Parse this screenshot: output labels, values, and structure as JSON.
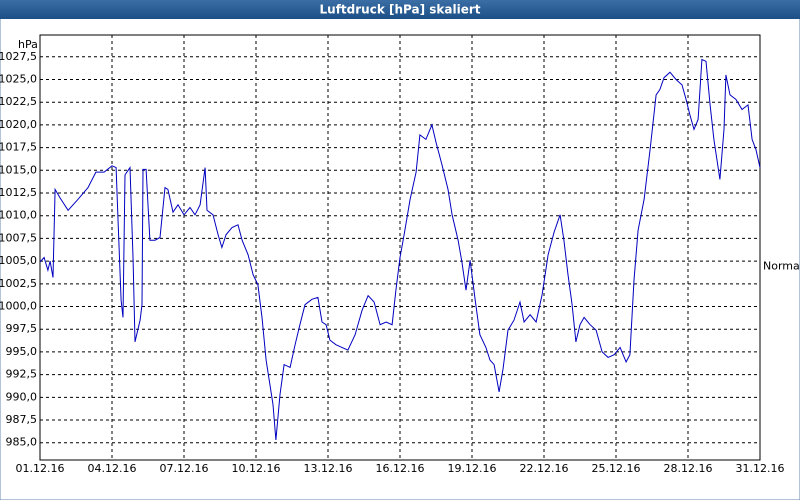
{
  "chart_data": {
    "type": "line",
    "title": "Luftdruck [hPa] skaliert",
    "y_label": "hPa",
    "annotation": {
      "text": "Normal",
      "value": 1004.4
    },
    "color": "#0000c0",
    "grid": true,
    "xlim": [
      1,
      31
    ],
    "ylim": [
      983.1,
      1029.9
    ],
    "xticks": [
      {
        "value": 1,
        "label": "01.12.16"
      },
      {
        "value": 4,
        "label": "04.12.16"
      },
      {
        "value": 7,
        "label": "07.12.16"
      },
      {
        "value": 10,
        "label": "10.12.16"
      },
      {
        "value": 13,
        "label": "13.12.16"
      },
      {
        "value": 16,
        "label": "16.12.16"
      },
      {
        "value": 19,
        "label": "19.12.16"
      },
      {
        "value": 22,
        "label": "22.12.16"
      },
      {
        "value": 25,
        "label": "25.12.16"
      },
      {
        "value": 28,
        "label": "28.12.16"
      },
      {
        "value": 31,
        "label": "31.12.16"
      }
    ],
    "yticks": [
      {
        "value": 985,
        "label": "985,0"
      },
      {
        "value": 987.5,
        "label": "987,5"
      },
      {
        "value": 990,
        "label": "990,0"
      },
      {
        "value": 992.5,
        "label": "992,5"
      },
      {
        "value": 995,
        "label": "995,0"
      },
      {
        "value": 997.5,
        "label": "997,5"
      },
      {
        "value": 1000,
        "label": "1000,0"
      },
      {
        "value": 1002.5,
        "label": "1002,5"
      },
      {
        "value": 1005,
        "label": "1005,0"
      },
      {
        "value": 1007.5,
        "label": "1007,5"
      },
      {
        "value": 1010,
        "label": "1010,0"
      },
      {
        "value": 1012.5,
        "label": "1012,5"
      },
      {
        "value": 1015,
        "label": "1015,0"
      },
      {
        "value": 1017.5,
        "label": "1017,5"
      },
      {
        "value": 1020,
        "label": "1020,0"
      },
      {
        "value": 1022.5,
        "label": "1022,5"
      },
      {
        "value": 1025,
        "label": "1025,0"
      },
      {
        "value": 1027.5,
        "label": "1027,5"
      }
    ],
    "x": [
      1.0,
      1.17,
      1.33,
      1.42,
      1.54,
      1.63,
      1.83,
      2.17,
      2.58,
      3.0,
      3.33,
      3.67,
      4.0,
      4.17,
      4.25,
      4.38,
      4.46,
      4.54,
      4.75,
      4.88,
      4.96,
      5.17,
      5.25,
      5.29,
      5.42,
      5.58,
      5.79,
      6.0,
      6.21,
      6.33,
      6.54,
      6.75,
      7.0,
      7.25,
      7.46,
      7.67,
      7.88,
      7.96,
      8.21,
      8.42,
      8.58,
      8.75,
      9.0,
      9.25,
      9.42,
      9.67,
      9.88,
      10.08,
      10.25,
      10.42,
      10.58,
      10.71,
      10.83,
      11.0,
      11.17,
      11.42,
      11.63,
      11.83,
      12.04,
      12.33,
      12.58,
      12.75,
      12.92,
      13.08,
      13.33,
      13.58,
      13.83,
      14.13,
      14.42,
      14.67,
      14.92,
      15.17,
      15.42,
      15.67,
      15.83,
      16.0,
      16.17,
      16.42,
      16.67,
      16.83,
      17.08,
      17.33,
      17.5,
      17.75,
      18.0,
      18.17,
      18.42,
      18.58,
      18.75,
      18.92,
      19.13,
      19.33,
      19.58,
      19.75,
      19.92,
      20.13,
      20.29,
      20.5,
      20.75,
      21.0,
      21.17,
      21.42,
      21.67,
      21.92,
      22.17,
      22.42,
      22.67,
      22.83,
      23.0,
      23.17,
      23.33,
      23.5,
      23.67,
      23.92,
      24.17,
      24.42,
      24.67,
      24.92,
      25.17,
      25.42,
      25.58,
      25.75,
      25.92,
      26.17,
      26.42,
      26.67,
      26.83,
      27.0,
      27.25,
      27.5,
      27.75,
      27.92,
      28.08,
      28.25,
      28.42,
      28.58,
      28.75,
      28.92,
      29.08,
      29.33,
      29.5,
      29.58,
      29.75,
      30.0,
      30.25,
      30.5,
      30.67,
      30.83,
      31.0
    ],
    "values": [
      1004.9,
      1005.4,
      1004.0,
      1005.0,
      1003.2,
      1012.9,
      1012.0,
      1010.6,
      1011.8,
      1013.1,
      1014.8,
      1014.8,
      1015.5,
      1015.3,
      1009.6,
      1000.7,
      998.8,
      1014.5,
      1015.3,
      1005.1,
      996.1,
      998.5,
      1000.2,
      1015.1,
      1015.1,
      1007.3,
      1007.3,
      1007.6,
      1013.1,
      1012.9,
      1010.4,
      1011.2,
      1010.1,
      1010.9,
      1010.1,
      1011.2,
      1015.3,
      1010.6,
      1010.1,
      1007.9,
      1006.5,
      1007.9,
      1008.7,
      1009.0,
      1007.3,
      1005.7,
      1003.5,
      1002.4,
      998.8,
      994.1,
      991.4,
      989.2,
      985.3,
      990.3,
      993.6,
      993.3,
      995.8,
      998.0,
      1000.2,
      1000.8,
      1001.0,
      998.3,
      998.0,
      996.3,
      995.8,
      995.5,
      995.2,
      996.9,
      999.6,
      1001.2,
      1000.5,
      998.0,
      998.3,
      998.0,
      1001.8,
      1005.4,
      1007.9,
      1011.8,
      1014.8,
      1018.9,
      1018.4,
      1020.0,
      1018.1,
      1015.6,
      1012.9,
      1010.1,
      1007.3,
      1004.9,
      1001.8,
      1005.1,
      1000.8,
      996.9,
      995.5,
      994.1,
      993.6,
      990.6,
      993.1,
      997.4,
      998.5,
      1000.5,
      998.3,
      999.1,
      998.3,
      1001.3,
      1005.7,
      1008.2,
      1010.1,
      1007.3,
      1003.5,
      1000.2,
      996.1,
      998.0,
      998.8,
      998.0,
      997.4,
      995.0,
      994.4,
      994.7,
      995.5,
      993.9,
      994.7,
      1002.9,
      1008.4,
      1011.8,
      1017.3,
      1023.3,
      1023.9,
      1025.2,
      1025.8,
      1025.0,
      1024.4,
      1022.8,
      1021.1,
      1019.5,
      1020.6,
      1027.2,
      1027.0,
      1022.2,
      1018.4,
      1014.0,
      1019.5,
      1025.5,
      1023.3,
      1022.8,
      1021.7,
      1022.2,
      1018.4,
      1017.3,
      1015.3
    ]
  }
}
